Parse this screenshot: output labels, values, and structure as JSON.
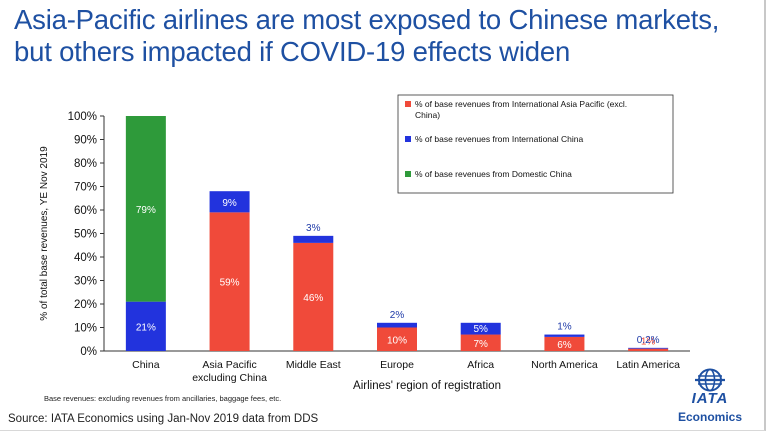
{
  "title_line1": "Asia-Pacific airlines are most exposed to Chinese markets,",
  "title_line2": "but others impacted if COVID-19 effects widen",
  "footnote": "Base revenues: excluding revenues from ancillaries, baggage fees, etc.",
  "source": "Source: IATA Economics using Jan-Nov 2019 data from DDS",
  "logo": {
    "name": "IATA",
    "subtitle": "Economics"
  },
  "colors": {
    "asia_pacific": "#f04a3a",
    "intl_china": "#2233dd",
    "domestic_china": "#2e9a3a",
    "title": "#1e50a2"
  },
  "chart_data": {
    "type": "bar",
    "stacked": true,
    "categories": [
      "China",
      "Asia Pacific excluding China",
      "Middle East",
      "Europe",
      "Africa",
      "North America",
      "Latin America"
    ],
    "category_lines": [
      [
        "China"
      ],
      [
        "Asia Pacific",
        "excluding China"
      ],
      [
        "Middle East"
      ],
      [
        "Europe"
      ],
      [
        "Africa"
      ],
      [
        "North America"
      ],
      [
        "Latin America"
      ]
    ],
    "series": [
      {
        "name": "% of base revenues from International Asia Pacific (excl. China)",
        "key": "asia_pacific",
        "values": [
          0,
          59,
          46,
          10,
          7,
          6,
          1
        ],
        "labels": [
          "",
          "59%",
          "46%",
          "10%",
          "7%",
          "6%",
          "1%"
        ]
      },
      {
        "name": "% of base revenues from International China",
        "key": "intl_china",
        "values": [
          21,
          9,
          3,
          2,
          5,
          1,
          0.2
        ],
        "labels": [
          "21%",
          "9%",
          "3%",
          "2%",
          "5%",
          "1%",
          "0.2%"
        ]
      },
      {
        "name": "% of base revenues from Domestic China",
        "key": "domestic_china",
        "values": [
          79,
          0,
          0,
          0,
          0,
          0,
          0
        ],
        "labels": [
          "79%",
          "",
          "",
          "",
          "",
          "",
          ""
        ]
      }
    ],
    "legend_lines": [
      [
        "% of base revenues from International Asia Pacific (excl.",
        "China)"
      ],
      [
        "% of base revenues from International China"
      ],
      [
        "% of base revenues from Domestic China"
      ]
    ],
    "xlabel": "Airlines' region of registration",
    "ylabel": "% of total base revenues, YE Nov 2019",
    "ylim": [
      0,
      100
    ],
    "yticks": [
      "0%",
      "10%",
      "20%",
      "30%",
      "40%",
      "50%",
      "60%",
      "70%",
      "80%",
      "90%",
      "100%"
    ],
    "legend_position": "top-right",
    "grid": false
  }
}
